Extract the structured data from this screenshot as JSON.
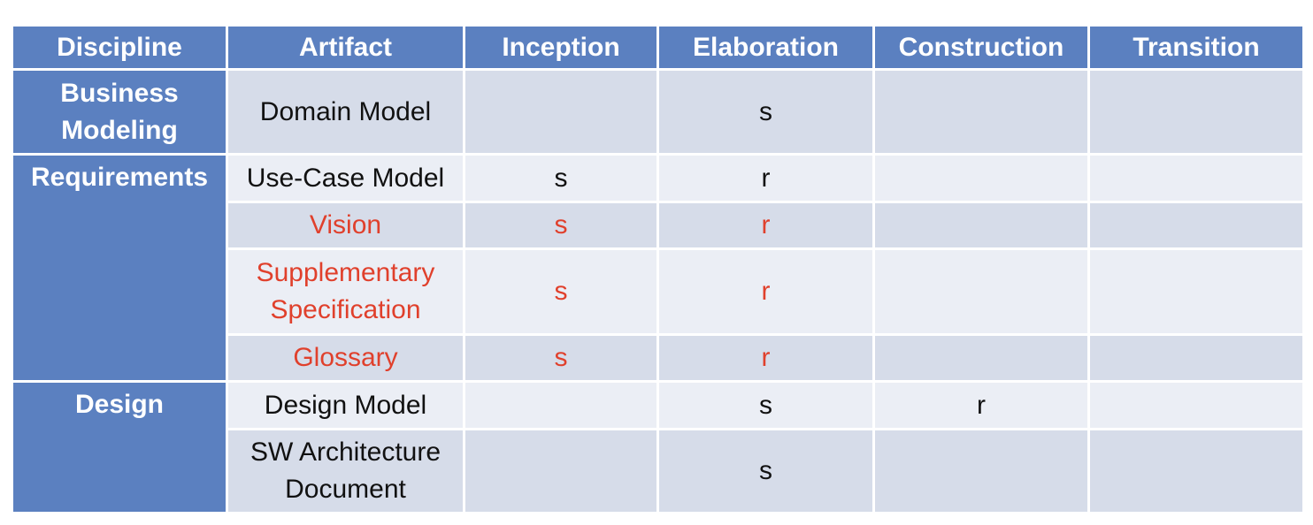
{
  "table": {
    "header": [
      "Discipline",
      "Artifact",
      "Inception",
      "Elaboration",
      "Construction",
      "Transition"
    ],
    "groups": [
      {
        "discipline": "Business Modeling",
        "rows": [
          {
            "artifact": "Domain Model",
            "cells": [
              null,
              "s",
              null,
              null
            ]
          }
        ]
      },
      {
        "discipline": "Requirements",
        "rows": [
          {
            "artifact": "Use-Case Model",
            "cells": [
              "s",
              "r",
              null,
              null
            ]
          },
          {
            "artifact": "Vision",
            "cells": [
              "s",
              "r",
              null,
              null
            ],
            "color": "#e0402c"
          },
          {
            "artifact": "Supplementary Specification",
            "cells": [
              "s",
              "r",
              null,
              null
            ],
            "color": "#e0402c"
          },
          {
            "artifact": "Glossary",
            "cells": [
              "s",
              "r",
              null,
              null
            ],
            "color": "#e0402c"
          }
        ]
      },
      {
        "discipline": "Design",
        "rows": [
          {
            "artifact": "Design Model",
            "cells": [
              null,
              "s",
              "r",
              null
            ]
          },
          {
            "artifact": "SW Architecture Document",
            "cells": [
              null,
              "s",
              null,
              null
            ]
          }
        ]
      }
    ]
  }
}
